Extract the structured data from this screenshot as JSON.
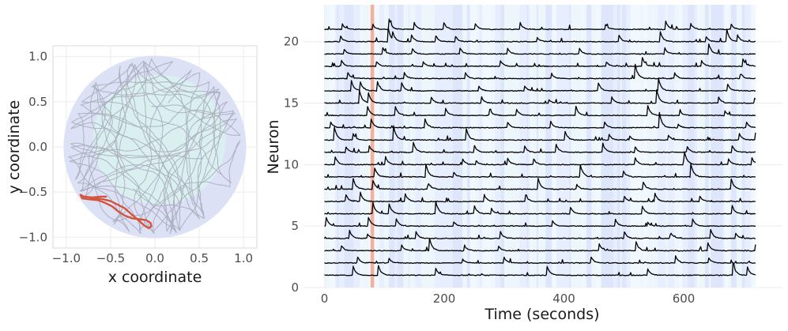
{
  "chart_data": [
    {
      "type": "scatter",
      "title": "",
      "xlabel": "x coordinate",
      "ylabel": "y coordinate",
      "xlim": [
        -1.15,
        1.15
      ],
      "ylim": [
        -1.12,
        1.12
      ],
      "x_ticks": [
        -1.0,
        -0.5,
        0.0,
        0.5,
        1.0
      ],
      "x_tick_labels": [
        "−1.0",
        "−0.5",
        "0.0",
        "0.5",
        "1.0"
      ],
      "y_ticks": [
        -1.0,
        -0.5,
        0.0,
        0.5,
        1.0
      ],
      "y_tick_labels": [
        "−1.0",
        "−0.5",
        "0.0",
        "0.5",
        "1.0"
      ],
      "grid": true,
      "arena": {
        "center": [
          0,
          0
        ],
        "radius": 1.03,
        "fill": "#dce1f6"
      },
      "inner_region": {
        "center": [
          0.05,
          0.08
        ],
        "rx": 0.75,
        "ry": 0.72,
        "fill": "#d9f2ee"
      },
      "trajectory_color": "#a9acbb",
      "highlight_color": "#d4533d",
      "highlight_segment": {
        "x": [
          -0.55,
          -0.62,
          -0.7,
          -0.8,
          -0.84,
          -0.82,
          -0.74,
          -0.64,
          -0.56,
          -0.48,
          -0.42,
          -0.34,
          -0.26,
          -0.18,
          -0.1,
          -0.05,
          -0.04,
          -0.07,
          -0.12,
          -0.2,
          -0.27,
          -0.34,
          -0.42,
          -0.5,
          -0.58,
          -0.66,
          -0.73
        ],
        "y": [
          -0.55,
          -0.55,
          -0.56,
          -0.55,
          -0.53,
          -0.57,
          -0.58,
          -0.59,
          -0.62,
          -0.66,
          -0.71,
          -0.76,
          -0.79,
          -0.8,
          -0.81,
          -0.84,
          -0.88,
          -0.9,
          -0.87,
          -0.8,
          -0.74,
          -0.68,
          -0.64,
          -0.6,
          -0.58,
          -0.57,
          -0.57
        ]
      }
    },
    {
      "type": "line",
      "title": "",
      "xlabel": "Time (seconds)",
      "ylabel": "Neuron",
      "xlim": [
        -35,
        765
      ],
      "ylim": [
        0,
        23
      ],
      "x_ticks": [
        0,
        200,
        400,
        600
      ],
      "y_ticks": [
        0,
        5,
        10,
        15,
        20
      ],
      "grid": true,
      "time_range": [
        0,
        720
      ],
      "n_neurons": 21,
      "trace_color": "#000000",
      "highlight_time_window": [
        77,
        83
      ],
      "highlight_color": "#f0a48c",
      "background_band_colors": [
        "#e7eeff",
        "#f2f8ff",
        "#dde6fb",
        "#edf6fb"
      ],
      "series": [
        {
          "neuron": 1,
          "peaks": [
            [
              47,
              1.0
            ],
            [
              90,
              0.9
            ],
            [
              186,
              0.6
            ],
            [
              371,
              1.0
            ],
            [
              540,
              0.6
            ],
            [
              682,
              1.2
            ],
            [
              706,
              0.8
            ]
          ]
        },
        {
          "neuron": 2,
          "peaks": [
            [
              55,
              0.6
            ],
            [
              107,
              0.5
            ],
            [
              230,
              0.4
            ],
            [
              300,
              0.5
            ],
            [
              445,
              0.6
            ],
            [
              586,
              0.7
            ],
            [
              641,
              0.6
            ]
          ]
        },
        {
          "neuron": 3,
          "peaks": [
            [
              28,
              0.5
            ],
            [
              128,
              0.6
            ],
            [
              175,
              1.2
            ],
            [
              233,
              0.6
            ],
            [
              291,
              0.4
            ],
            [
              459,
              0.6
            ],
            [
              520,
              0.9
            ],
            [
              640,
              0.8
            ],
            [
              719,
              0.7
            ]
          ]
        },
        {
          "neuron": 4,
          "peaks": [
            [
              42,
              0.7
            ],
            [
              71,
              0.5
            ],
            [
              153,
              0.6
            ],
            [
              294,
              0.6
            ],
            [
              501,
              0.6
            ],
            [
              578,
              0.6
            ],
            [
              645,
              0.8
            ],
            [
              686,
              0.6
            ]
          ]
        },
        {
          "neuron": 5,
          "peaks": [
            [
              3,
              0.8
            ],
            [
              73,
              0.9
            ],
            [
              119,
              0.8
            ],
            [
              216,
              0.4
            ],
            [
              381,
              0.5
            ],
            [
              486,
              0.6
            ],
            [
              539,
              0.4
            ],
            [
              614,
              0.8
            ]
          ]
        },
        {
          "neuron": 6,
          "peaks": [
            [
              81,
              1.0
            ],
            [
              108,
              0.9
            ],
            [
              186,
              1.1
            ],
            [
              250,
              0.8
            ],
            [
              278,
              0.6
            ],
            [
              411,
              0.6
            ],
            [
              531,
              0.7
            ],
            [
              680,
              0.9
            ]
          ]
        },
        {
          "neuron": 7,
          "peaks": [
            [
              36,
              0.6
            ],
            [
              60,
              0.8
            ],
            [
              134,
              0.9
            ],
            [
              267,
              0.6
            ],
            [
              335,
              0.7
            ],
            [
              500,
              0.6
            ],
            [
              551,
              0.9
            ],
            [
              627,
              0.5
            ]
          ]
        },
        {
          "neuron": 8,
          "peaks": [
            [
              47,
              1.2
            ],
            [
              80,
              1.0
            ],
            [
              173,
              0.6
            ],
            [
              357,
              1.0
            ],
            [
              421,
              0.5
            ],
            [
              532,
              0.7
            ],
            [
              679,
              1.0
            ]
          ]
        },
        {
          "neuron": 9,
          "peaks": [
            [
              84,
              0.8
            ],
            [
              169,
              1.3
            ],
            [
              215,
              0.5
            ],
            [
              427,
              1.2
            ],
            [
              499,
              0.6
            ],
            [
              611,
              1.5
            ]
          ]
        },
        {
          "neuron": 10,
          "peaks": [
            [
              17,
              0.9
            ],
            [
              101,
              0.9
            ],
            [
              230,
              0.6
            ],
            [
              253,
              0.4
            ],
            [
              306,
              0.6
            ],
            [
              349,
              0.6
            ],
            [
              518,
              0.8
            ],
            [
              601,
              1.3
            ],
            [
              675,
              0.5
            ],
            [
              714,
              0.6
            ]
          ]
        },
        {
          "neuron": 11,
          "peaks": [
            [
              36,
              0.5
            ],
            [
              74,
              0.7
            ],
            [
              148,
              1.0
            ],
            [
              250,
              0.7
            ],
            [
              334,
              0.6
            ],
            [
              386,
              0.9
            ],
            [
              465,
              0.8
            ],
            [
              519,
              0.5
            ],
            [
              606,
              0.5
            ],
            [
              681,
              0.6
            ]
          ]
        },
        {
          "neuron": 12,
          "peaks": [
            [
              16,
              1.3
            ],
            [
              47,
              0.7
            ],
            [
              115,
              1.4
            ],
            [
              237,
              1.0
            ],
            [
              402,
              0.8
            ],
            [
              475,
              0.6
            ],
            [
              509,
              0.4
            ],
            [
              574,
              0.5
            ],
            [
              693,
              0.6
            ],
            [
              719,
              0.8
            ]
          ]
        },
        {
          "neuron": 13,
          "peaks": [
            [
              10,
              0.6
            ],
            [
              77,
              1.0
            ],
            [
              167,
              1.0
            ],
            [
              306,
              0.5
            ],
            [
              377,
              0.7
            ],
            [
              467,
              0.6
            ],
            [
              559,
              1.5
            ],
            [
              590,
              0.4
            ],
            [
              705,
              0.5
            ]
          ]
        },
        {
          "neuron": 14,
          "peaks": [
            [
              72,
              0.8
            ],
            [
              118,
              0.9
            ],
            [
              202,
              0.7
            ],
            [
              276,
              0.5
            ],
            [
              320,
              0.7
            ],
            [
              420,
              0.8
            ],
            [
              540,
              0.9
            ],
            [
              594,
              0.4
            ],
            [
              668,
              0.5
            ]
          ]
        },
        {
          "neuron": 15,
          "peaks": [
            [
              58,
              1.3
            ],
            [
              73,
              1.0
            ],
            [
              178,
              0.6
            ],
            [
              262,
              0.6
            ],
            [
              374,
              0.4
            ],
            [
              479,
              0.7
            ],
            [
              555,
              1.2
            ],
            [
              658,
              0.6
            ],
            [
              718,
              0.5
            ]
          ]
        },
        {
          "neuron": 16,
          "peaks": [
            [
              45,
              0.9
            ],
            [
              60,
              0.8
            ],
            [
              88,
              0.9
            ],
            [
              129,
              0.7
            ],
            [
              258,
              0.4
            ],
            [
              334,
              0.5
            ],
            [
              457,
              0.8
            ],
            [
              558,
              1.1
            ],
            [
              673,
              0.7
            ]
          ]
        },
        {
          "neuron": 17,
          "peaks": [
            [
              38,
              0.7
            ],
            [
              133,
              0.6
            ],
            [
              235,
              0.6
            ],
            [
              379,
              0.5
            ],
            [
              518,
              1.6
            ],
            [
              585,
              0.5
            ],
            [
              695,
              0.5
            ]
          ]
        },
        {
          "neuron": 18,
          "peaks": [
            [
              28,
              0.6
            ],
            [
              86,
              0.5
            ],
            [
              165,
              0.4
            ],
            [
              294,
              0.5
            ],
            [
              470,
              0.5
            ],
            [
              531,
              0.8
            ],
            [
              629,
              0.6
            ],
            [
              698,
              0.8
            ]
          ]
        },
        {
          "neuron": 19,
          "peaks": [
            [
              32,
              0.5
            ],
            [
              97,
              0.6
            ],
            [
              146,
              0.6
            ],
            [
              226,
              0.6
            ],
            [
              306,
              0.5
            ],
            [
              426,
              0.5
            ],
            [
              568,
              0.6
            ],
            [
              642,
              0.9
            ]
          ]
        },
        {
          "neuron": 20,
          "peaks": [
            [
              26,
              0.6
            ],
            [
              106,
              1.4
            ],
            [
              113,
              0.8
            ],
            [
              145,
              0.7
            ],
            [
              185,
              0.6
            ],
            [
              218,
              0.6
            ],
            [
              355,
              0.4
            ],
            [
              491,
              0.7
            ],
            [
              561,
              0.9
            ],
            [
              637,
              0.5
            ],
            [
              672,
              1.1
            ],
            [
              690,
              0.6
            ]
          ]
        },
        {
          "neuron": 21,
          "peaks": [
            [
              29,
              0.6
            ],
            [
              80,
              0.5
            ],
            [
              108,
              0.9
            ],
            [
              150,
              0.6
            ],
            [
              199,
              0.7
            ],
            [
              252,
              0.5
            ],
            [
              327,
              0.6
            ],
            [
              469,
              0.5
            ],
            [
              569,
              0.9
            ],
            [
              612,
              0.5
            ],
            [
              679,
              0.5
            ]
          ]
        }
      ]
    }
  ]
}
